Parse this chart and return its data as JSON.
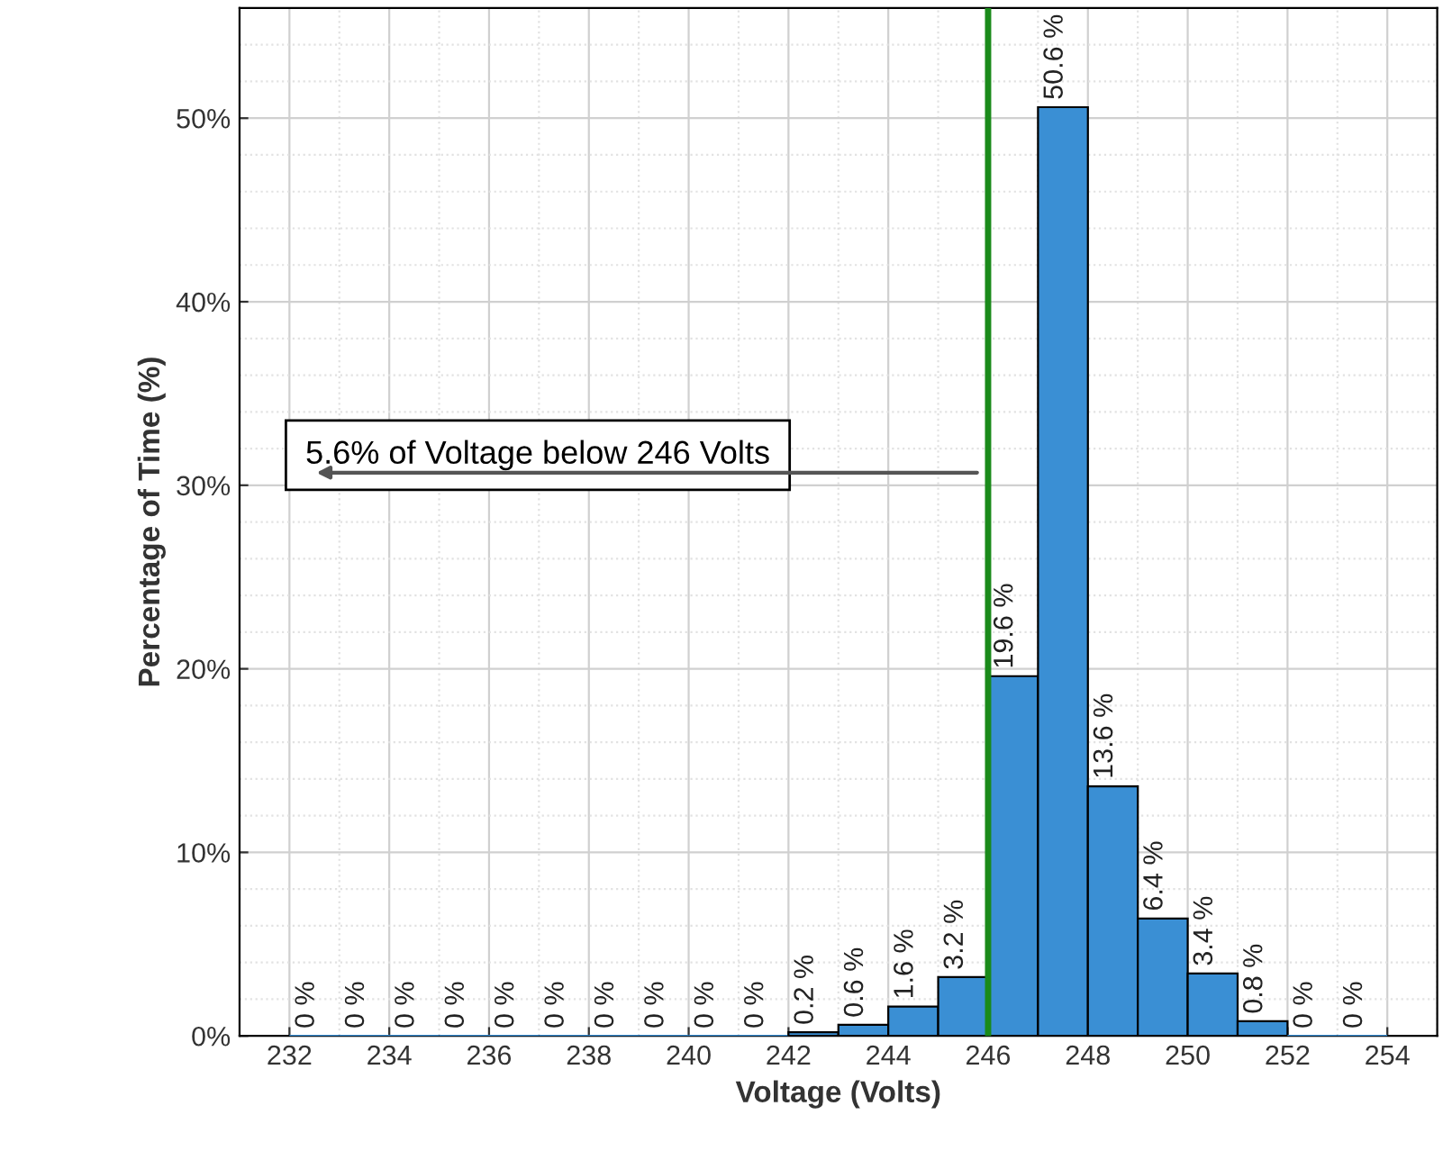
{
  "chart_data": {
    "type": "histogram",
    "xlabel": "Voltage (Volts)",
    "ylabel": "Percentage of Time (%)",
    "bins": [
      232,
      233,
      234,
      235,
      236,
      237,
      238,
      239,
      240,
      241,
      242,
      243,
      244,
      245,
      246,
      247,
      248,
      249,
      250,
      251,
      252,
      253,
      254
    ],
    "values": [
      0,
      0,
      0,
      0,
      0,
      0,
      0,
      0,
      0,
      0,
      0.2,
      0.6,
      1.6,
      3.2,
      19.6,
      50.6,
      13.6,
      6.4,
      3.4,
      0.8,
      0,
      0
    ],
    "value_labels": [
      "0 %",
      "0 %",
      "0 %",
      "0 %",
      "0 %",
      "0 %",
      "0 %",
      "0 %",
      "0 %",
      "0 %",
      "0.2 %",
      "0.6 %",
      "1.6 %",
      "3.2 %",
      "19.6 %",
      "50.6 %",
      "13.6 %",
      "6.4 %",
      "3.4 %",
      "0.8 %",
      "0 %",
      "0 %"
    ],
    "color": "#3a8fd4",
    "xlim": [
      231,
      255
    ],
    "ylim": [
      0,
      56
    ],
    "xticks": [
      232,
      234,
      236,
      238,
      240,
      242,
      244,
      246,
      248,
      250,
      252,
      254
    ],
    "yticks": [
      {
        "value": 0,
        "label": "0%"
      },
      {
        "value": 10,
        "label": "10%"
      },
      {
        "value": 20,
        "label": "20%"
      },
      {
        "value": 30,
        "label": "30%"
      },
      {
        "value": 40,
        "label": "40%"
      },
      {
        "value": 50,
        "label": "50%"
      }
    ],
    "grid": true,
    "ref_lines": [
      {
        "axis": "x",
        "value": 246,
        "color": "#1a8a1a"
      }
    ],
    "annotations": [
      "5.6% of Voltage below 246 Volts"
    ]
  }
}
